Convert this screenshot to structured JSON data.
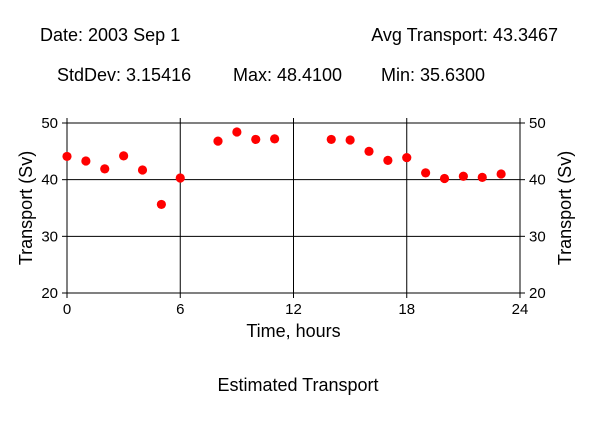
{
  "header": {
    "date": "Date: 2003 Sep 1",
    "avg": "Avg Transport: 43.3467",
    "stddev": "StdDev: 3.15416",
    "max": "Max: 48.4100",
    "min": "Min: 35.6300"
  },
  "footer": {
    "title": "Estimated Transport"
  },
  "chart_data": {
    "type": "scatter",
    "title": "Estimated Transport",
    "xlabel": "Time, hours",
    "ylabel": "Transport (Sv)",
    "ylabel_right": "Transport (Sv)",
    "xlim": [
      0,
      24
    ],
    "ylim": [
      20,
      50
    ],
    "xticks": [
      0,
      6,
      12,
      18,
      24
    ],
    "yticks": [
      20,
      30,
      40,
      50
    ],
    "grid": true,
    "marker_color": "#ff0000",
    "series": [
      {
        "x": [
          0,
          1,
          2,
          3,
          4,
          5,
          6,
          8,
          9,
          10,
          11,
          14,
          15,
          16,
          17,
          18,
          19,
          20,
          21,
          22,
          23
        ],
        "y": [
          44.1,
          43.3,
          41.9,
          44.2,
          41.7,
          35.63,
          40.3,
          46.8,
          48.41,
          47.1,
          47.2,
          47.1,
          47.0,
          45.0,
          43.4,
          43.9,
          41.2,
          40.2,
          40.6,
          40.4,
          41.0
        ]
      }
    ]
  }
}
